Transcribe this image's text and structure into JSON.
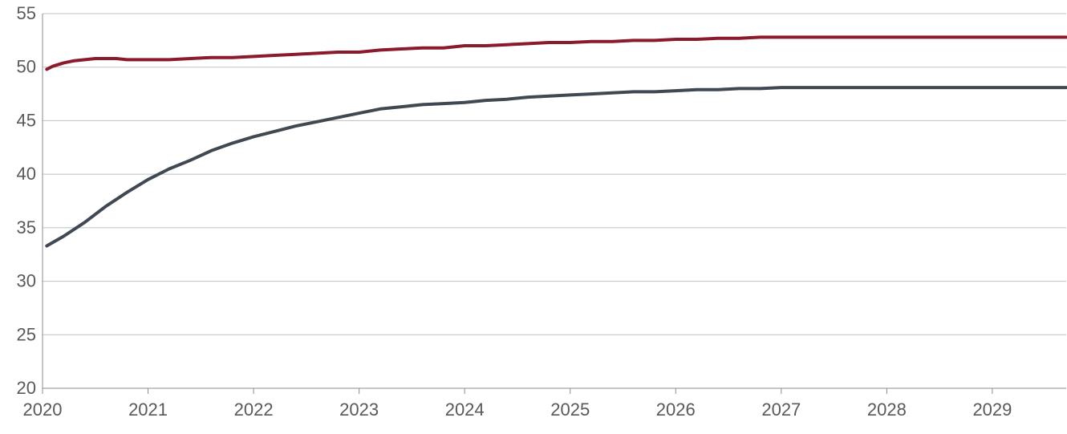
{
  "chart_data": {
    "type": "line",
    "title": "",
    "xlabel": "",
    "ylabel": "",
    "xlim": [
      2020,
      2029.7
    ],
    "ylim": [
      20,
      55
    ],
    "x_ticks": [
      "2020",
      "2021",
      "2022",
      "2023",
      "2024",
      "2025",
      "2026",
      "2027",
      "2028",
      "2029"
    ],
    "y_ticks": [
      "20",
      "25",
      "30",
      "35",
      "40",
      "45",
      "50",
      "55"
    ],
    "grid": true,
    "legend": "none",
    "series": [
      {
        "color": "#8b1a2b",
        "x": [
          2020.04,
          2020.1,
          2020.2,
          2020.3,
          2020.4,
          2020.5,
          2020.6,
          2020.7,
          2020.8,
          2020.9,
          2021.0,
          2021.2,
          2021.4,
          2021.6,
          2021.8,
          2022.0,
          2022.2,
          2022.4,
          2022.6,
          2022.8,
          2023.0,
          2023.2,
          2023.4,
          2023.6,
          2023.8,
          2024.0,
          2024.2,
          2024.4,
          2024.6,
          2024.8,
          2025.0,
          2025.2,
          2025.4,
          2025.6,
          2025.8,
          2026.0,
          2026.2,
          2026.4,
          2026.6,
          2026.8,
          2027.0,
          2027.2,
          2027.5,
          2028.0,
          2028.5,
          2029.0,
          2029.7
        ],
        "y": [
          49.8,
          50.1,
          50.4,
          50.6,
          50.7,
          50.8,
          50.8,
          50.8,
          50.7,
          50.7,
          50.7,
          50.7,
          50.8,
          50.9,
          50.9,
          51.0,
          51.1,
          51.2,
          51.3,
          51.4,
          51.4,
          51.6,
          51.7,
          51.8,
          51.8,
          52.0,
          52.0,
          52.1,
          52.2,
          52.3,
          52.3,
          52.4,
          52.4,
          52.5,
          52.5,
          52.6,
          52.6,
          52.7,
          52.7,
          52.8,
          52.8,
          52.8,
          52.8,
          52.8,
          52.8,
          52.8,
          52.8
        ]
      },
      {
        "color": "#404852",
        "x": [
          2020.04,
          2020.2,
          2020.4,
          2020.6,
          2020.8,
          2021.0,
          2021.2,
          2021.4,
          2021.6,
          2021.8,
          2022.0,
          2022.2,
          2022.4,
          2022.6,
          2022.8,
          2023.0,
          2023.2,
          2023.4,
          2023.6,
          2023.8,
          2024.0,
          2024.2,
          2024.4,
          2024.6,
          2024.8,
          2025.0,
          2025.2,
          2025.4,
          2025.6,
          2025.8,
          2026.0,
          2026.2,
          2026.4,
          2026.6,
          2026.8,
          2027.0,
          2027.2,
          2027.5,
          2028.0,
          2028.5,
          2029.0,
          2029.7
        ],
        "y": [
          33.3,
          34.2,
          35.5,
          37.0,
          38.3,
          39.5,
          40.5,
          41.3,
          42.2,
          42.9,
          43.5,
          44.0,
          44.5,
          44.9,
          45.3,
          45.7,
          46.1,
          46.3,
          46.5,
          46.6,
          46.7,
          46.9,
          47.0,
          47.2,
          47.3,
          47.4,
          47.5,
          47.6,
          47.7,
          47.7,
          47.8,
          47.9,
          47.9,
          48.0,
          48.0,
          48.1,
          48.1,
          48.1,
          48.1,
          48.1,
          48.1,
          48.1
        ]
      }
    ]
  }
}
